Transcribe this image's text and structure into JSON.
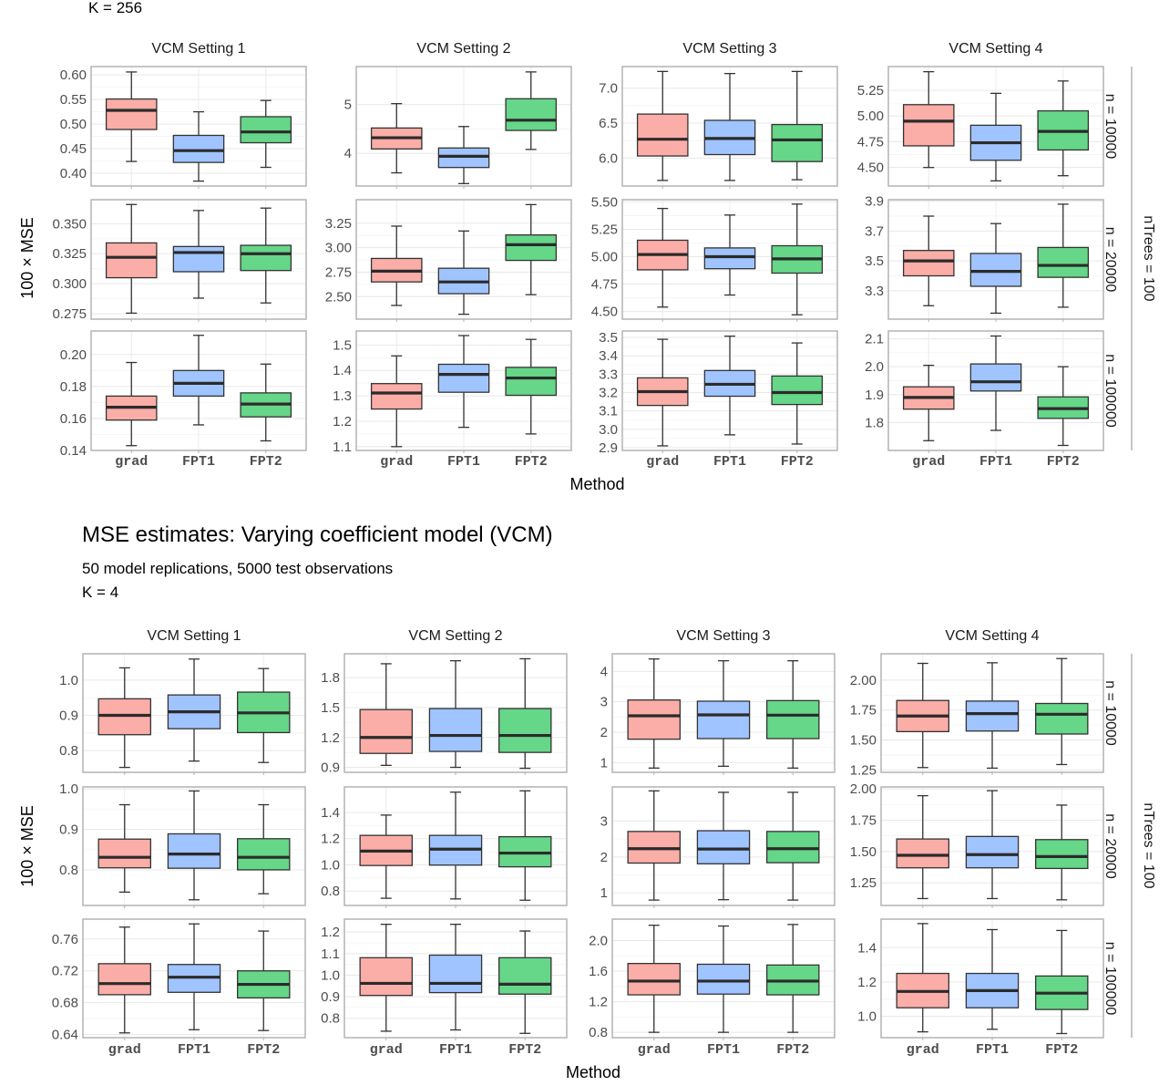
{
  "chart_data": [
    {
      "type": "box",
      "title": "",
      "header_lines": [
        "K = 256"
      ],
      "xlabel": "Method",
      "ylabel": "100 × MSE",
      "categories": [
        "grad",
        "FPT1",
        "FPT2"
      ],
      "series_colors": {
        "grad": "#F8766D",
        "FPT1": "#619CFF",
        "FPT2": "#00BA38"
      },
      "stats_order": [
        "min",
        "q1",
        "median",
        "q3",
        "max"
      ],
      "column_labels": [
        "VCM Setting 1",
        "VCM Setting 2",
        "VCM Setting 3",
        "VCM Setting 4"
      ],
      "row_labels": [
        "n = 10000",
        "n = 20000",
        "n = 100000"
      ],
      "row_group_label": "nTrees = 100",
      "grid": true,
      "panels": [
        {
          "row": 0,
          "col": 0,
          "ylim": [
            0.374,
            0.617
          ],
          "ticks": [
            "0.40",
            "0.45",
            "0.50",
            "0.55",
            "0.60"
          ],
          "boxes": [
            [
              0.424,
              0.489,
              0.528,
              0.551,
              0.606
            ],
            [
              0.384,
              0.422,
              0.446,
              0.477,
              0.525
            ],
            [
              0.412,
              0.462,
              0.484,
              0.515,
              0.548
            ]
          ]
        },
        {
          "row": 0,
          "col": 1,
          "ylim": [
            3.33,
            5.78
          ],
          "ticks": [
            "4",
            "5"
          ],
          "boxes": [
            [
              3.6,
              4.09,
              4.32,
              4.52,
              5.02
            ],
            [
              3.38,
              3.71,
              3.94,
              4.11,
              4.55
            ],
            [
              4.08,
              4.47,
              4.68,
              5.12,
              5.67
            ]
          ]
        },
        {
          "row": 0,
          "col": 2,
          "ylim": [
            5.6,
            7.31
          ],
          "ticks": [
            "6.0",
            "6.5",
            "7.0"
          ],
          "boxes": [
            [
              5.68,
              6.03,
              6.27,
              6.63,
              7.24
            ],
            [
              5.68,
              6.05,
              6.28,
              6.54,
              7.21
            ],
            [
              5.69,
              5.95,
              6.26,
              6.48,
              7.24
            ]
          ]
        },
        {
          "row": 0,
          "col": 3,
          "ylim": [
            4.32,
            5.48
          ],
          "ticks": [
            "4.50",
            "4.75",
            "5.00",
            "5.25"
          ],
          "boxes": [
            [
              4.5,
              4.71,
              4.95,
              5.11,
              5.43
            ],
            [
              4.37,
              4.57,
              4.74,
              4.91,
              5.22
            ],
            [
              4.42,
              4.67,
              4.85,
              5.05,
              5.34
            ]
          ]
        },
        {
          "row": 1,
          "col": 0,
          "ylim": [
            0.2705,
            0.37
          ],
          "ticks": [
            "0.275",
            "0.300",
            "0.325",
            "0.350"
          ],
          "boxes": [
            [
              0.2755,
              0.305,
              0.322,
              0.334,
              0.366
            ],
            [
              0.288,
              0.31,
              0.326,
              0.331,
              0.361
            ],
            [
              0.284,
              0.311,
              0.325,
              0.332,
              0.363
            ]
          ]
        },
        {
          "row": 1,
          "col": 1,
          "ylim": [
            2.27,
            3.49
          ],
          "ticks": [
            "2.50",
            "2.75",
            "3.00",
            "3.25"
          ],
          "boxes": [
            [
              2.41,
              2.65,
              2.76,
              2.89,
              3.22
            ],
            [
              2.32,
              2.53,
              2.65,
              2.79,
              3.17
            ],
            [
              2.52,
              2.87,
              3.03,
              3.13,
              3.44
            ]
          ]
        },
        {
          "row": 1,
          "col": 2,
          "ylim": [
            4.43,
            5.52
          ],
          "ticks": [
            "4.50",
            "4.75",
            "5.00",
            "5.25",
            "5.50"
          ],
          "boxes": [
            [
              4.54,
              4.88,
              5.02,
              5.15,
              5.44
            ],
            [
              4.65,
              4.89,
              5.0,
              5.08,
              5.38
            ],
            [
              4.47,
              4.85,
              4.98,
              5.1,
              5.48
            ]
          ]
        },
        {
          "row": 1,
          "col": 3,
          "ylim": [
            3.11,
            3.91
          ],
          "ticks": [
            "3.3",
            "3.5",
            "3.7",
            "3.9"
          ],
          "boxes": [
            [
              3.2,
              3.4,
              3.5,
              3.57,
              3.8
            ],
            [
              3.15,
              3.33,
              3.43,
              3.55,
              3.75
            ],
            [
              3.19,
              3.39,
              3.47,
              3.59,
              3.88
            ]
          ]
        },
        {
          "row": 2,
          "col": 0,
          "ylim": [
            0.14,
            0.2147
          ],
          "ticks": [
            "0.14",
            "0.16",
            "0.18",
            "0.20"
          ],
          "boxes": [
            [
              0.143,
              0.159,
              0.167,
              0.174,
              0.195
            ],
            [
              0.156,
              0.174,
              0.182,
              0.19,
              0.212
            ],
            [
              0.146,
              0.161,
              0.169,
              0.176,
              0.194
            ]
          ]
        },
        {
          "row": 2,
          "col": 1,
          "ylim": [
            1.085,
            1.555
          ],
          "ticks": [
            "1.1",
            "1.2",
            "1.3",
            "1.4",
            "1.5"
          ],
          "boxes": [
            [
              1.1,
              1.248,
              1.311,
              1.348,
              1.457
            ],
            [
              1.176,
              1.314,
              1.384,
              1.424,
              1.537
            ],
            [
              1.15,
              1.302,
              1.37,
              1.412,
              1.522
            ]
          ]
        },
        {
          "row": 2,
          "col": 2,
          "ylim": [
            2.885,
            3.535
          ],
          "ticks": [
            "2.9",
            "3.0",
            "3.1",
            "3.2",
            "3.3",
            "3.4",
            "3.5"
          ],
          "boxes": [
            [
              2.91,
              3.13,
              3.205,
              3.28,
              3.49
            ],
            [
              2.97,
              3.18,
              3.245,
              3.32,
              3.507
            ],
            [
              2.92,
              3.135,
              3.2,
              3.29,
              3.47
            ]
          ]
        },
        {
          "row": 2,
          "col": 3,
          "ylim": [
            1.7,
            2.128
          ],
          "ticks": [
            "1.8",
            "1.9",
            "2.0",
            "2.1"
          ],
          "boxes": [
            [
              1.735,
              1.848,
              1.89,
              1.928,
              2.005
            ],
            [
              1.772,
              1.913,
              1.946,
              2.01,
              2.11
            ],
            [
              1.718,
              1.815,
              1.85,
              1.892,
              2.0
            ]
          ]
        }
      ]
    },
    {
      "type": "box",
      "title": "MSE estimates: Varying coefficient model (VCM)",
      "header_lines": [
        "50 model replications, 5000 test observations",
        "K = 4"
      ],
      "xlabel": "Method",
      "ylabel": "100 × MSE",
      "categories": [
        "grad",
        "FPT1",
        "FPT2"
      ],
      "series_colors": {
        "grad": "#F8766D",
        "FPT1": "#619CFF",
        "FPT2": "#00BA38"
      },
      "stats_order": [
        "min",
        "q1",
        "median",
        "q3",
        "max"
      ],
      "column_labels": [
        "VCM Setting 1",
        "VCM Setting 2",
        "VCM Setting 3",
        "VCM Setting 4"
      ],
      "row_labels": [
        "n = 10000",
        "n = 20000",
        "n = 100000"
      ],
      "row_group_label": "nTrees = 100",
      "grid": true,
      "panels": [
        {
          "row": 0,
          "col": 0,
          "ylim": [
            0.738,
            1.075
          ],
          "ticks": [
            "0.8",
            "0.9",
            "1.0"
          ],
          "boxes": [
            [
              0.752,
              0.845,
              0.9,
              0.947,
              1.035
            ],
            [
              0.77,
              0.862,
              0.91,
              0.958,
              1.06
            ],
            [
              0.766,
              0.851,
              0.907,
              0.966,
              1.033
            ]
          ]
        },
        {
          "row": 0,
          "col": 1,
          "ylim": [
            0.85,
            2.04
          ],
          "ticks": [
            "0.9",
            "1.2",
            "1.5",
            "1.8"
          ],
          "boxes": [
            [
              0.92,
              1.04,
              1.2,
              1.48,
              1.94
            ],
            [
              0.9,
              1.06,
              1.22,
              1.49,
              1.97
            ],
            [
              0.89,
              1.05,
              1.22,
              1.49,
              1.99
            ]
          ]
        },
        {
          "row": 0,
          "col": 2,
          "ylim": [
            0.68,
            4.58
          ],
          "ticks": [
            "1",
            "2",
            "3",
            "4"
          ],
          "boxes": [
            [
              0.82,
              1.77,
              2.54,
              3.06,
              4.41
            ],
            [
              0.88,
              1.79,
              2.57,
              3.02,
              4.35
            ],
            [
              0.82,
              1.79,
              2.56,
              3.04,
              4.35
            ]
          ]
        },
        {
          "row": 0,
          "col": 3,
          "ylim": [
            1.23,
            2.22
          ],
          "ticks": [
            "1.25",
            "1.50",
            "1.75",
            "2.00"
          ],
          "boxes": [
            [
              1.27,
              1.57,
              1.7,
              1.83,
              2.14
            ],
            [
              1.265,
              1.575,
              1.72,
              1.825,
              2.145
            ],
            [
              1.295,
              1.55,
              1.715,
              1.805,
              2.18
            ]
          ]
        },
        {
          "row": 1,
          "col": 0,
          "ylim": [
            0.712,
            1.005
          ],
          "ticks": [
            "0.8",
            "0.9",
            "1.0"
          ],
          "boxes": [
            [
              0.745,
              0.805,
              0.831,
              0.876,
              0.961
            ],
            [
              0.726,
              0.804,
              0.839,
              0.889,
              0.995
            ],
            [
              0.741,
              0.8,
              0.831,
              0.877,
              0.961
            ]
          ]
        },
        {
          "row": 1,
          "col": 1,
          "ylim": [
            0.69,
            1.595
          ],
          "ticks": [
            "0.8",
            "1.0",
            "1.2",
            "1.4"
          ],
          "boxes": [
            [
              0.745,
              0.995,
              1.105,
              1.225,
              1.38
            ],
            [
              0.74,
              0.998,
              1.12,
              1.225,
              1.555
            ],
            [
              0.73,
              0.985,
              1.09,
              1.215,
              1.565
            ]
          ]
        },
        {
          "row": 1,
          "col": 2,
          "ylim": [
            0.65,
            3.95
          ],
          "ticks": [
            "1",
            "2",
            "3"
          ],
          "boxes": [
            [
              0.8,
              1.83,
              2.23,
              2.71,
              3.84
            ],
            [
              0.81,
              1.81,
              2.22,
              2.73,
              3.8
            ],
            [
              0.8,
              1.84,
              2.23,
              2.71,
              3.8
            ]
          ]
        },
        {
          "row": 1,
          "col": 3,
          "ylim": [
            1.07,
            2.015
          ],
          "ticks": [
            "1.25",
            "1.50",
            "1.75",
            "2.00"
          ],
          "boxes": [
            [
              1.125,
              1.37,
              1.47,
              1.6,
              1.945
            ],
            [
              1.125,
              1.37,
              1.475,
              1.62,
              1.985
            ],
            [
              1.115,
              1.365,
              1.46,
              1.595,
              1.87
            ]
          ]
        },
        {
          "row": 2,
          "col": 0,
          "ylim": [
            0.636,
            0.785
          ],
          "ticks": [
            "0.64",
            "0.68",
            "0.72",
            "0.76"
          ],
          "boxes": [
            [
              0.642,
              0.69,
              0.704,
              0.729,
              0.775
            ],
            [
              0.646,
              0.693,
              0.712,
              0.728,
              0.779
            ],
            [
              0.645,
              0.686,
              0.703,
              0.72,
              0.77
            ]
          ]
        },
        {
          "row": 2,
          "col": 1,
          "ylim": [
            0.71,
            1.26
          ],
          "ticks": [
            "0.8",
            "0.9",
            "1.0",
            "1.1",
            "1.2"
          ],
          "boxes": [
            [
              0.74,
              0.906,
              0.962,
              1.081,
              1.236
            ],
            [
              0.746,
              0.919,
              0.962,
              1.093,
              1.236
            ],
            [
              0.73,
              0.912,
              0.958,
              1.081,
              1.205
            ]
          ]
        },
        {
          "row": 2,
          "col": 2,
          "ylim": [
            0.73,
            2.28
          ],
          "ticks": [
            "0.8",
            "1.2",
            "1.6",
            "2.0"
          ],
          "boxes": [
            [
              0.8,
              1.29,
              1.47,
              1.7,
              2.2
            ],
            [
              0.8,
              1.3,
              1.47,
              1.69,
              2.19
            ],
            [
              0.8,
              1.29,
              1.47,
              1.68,
              2.21
            ]
          ]
        },
        {
          "row": 2,
          "col": 3,
          "ylim": [
            0.876,
            1.566
          ],
          "ticks": [
            "1.0",
            "1.2",
            "1.4"
          ],
          "boxes": [
            [
              0.91,
              1.05,
              1.145,
              1.25,
              1.54
            ],
            [
              0.925,
              1.05,
              1.15,
              1.25,
              1.505
            ],
            [
              0.9,
              1.04,
              1.135,
              1.235,
              1.5
            ]
          ]
        }
      ]
    }
  ]
}
